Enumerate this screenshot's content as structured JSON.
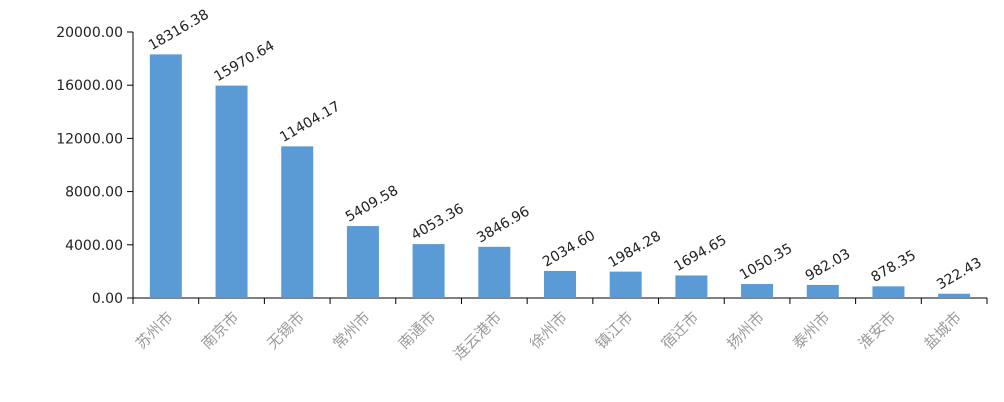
{
  "chart_data": {
    "type": "bar",
    "title": "",
    "xlabel": "",
    "ylabel": "",
    "categories": [
      "苏州市",
      "南京市",
      "无锡市",
      "常州市",
      "南通市",
      "连云港市",
      "徐州市",
      "镇江市",
      "宿迁市",
      "扬州市",
      "泰州市",
      "淮安市",
      "盐城市"
    ],
    "values": [
      18316.38,
      15970.64,
      11404.17,
      5409.58,
      4053.36,
      3846.96,
      2034.6,
      1984.28,
      1694.65,
      1050.35,
      982.03,
      878.35,
      322.43
    ],
    "value_labels": [
      "18316.38",
      "15970.64",
      "11404.17",
      "5409.58",
      "4053.36",
      "3846.96",
      "2034.60",
      "1984.28",
      "1694.65",
      "1050.35",
      "982.03",
      "878.35",
      "322.43"
    ],
    "ylim": [
      0,
      20000
    ],
    "y_ticks": [
      "0.00",
      "4000.00",
      "8000.00",
      "12000.00",
      "16000.00",
      "20000.00"
    ],
    "grid": false,
    "legend": "none",
    "bar_color": "#5b9bd5",
    "axis_color": "#000000"
  }
}
